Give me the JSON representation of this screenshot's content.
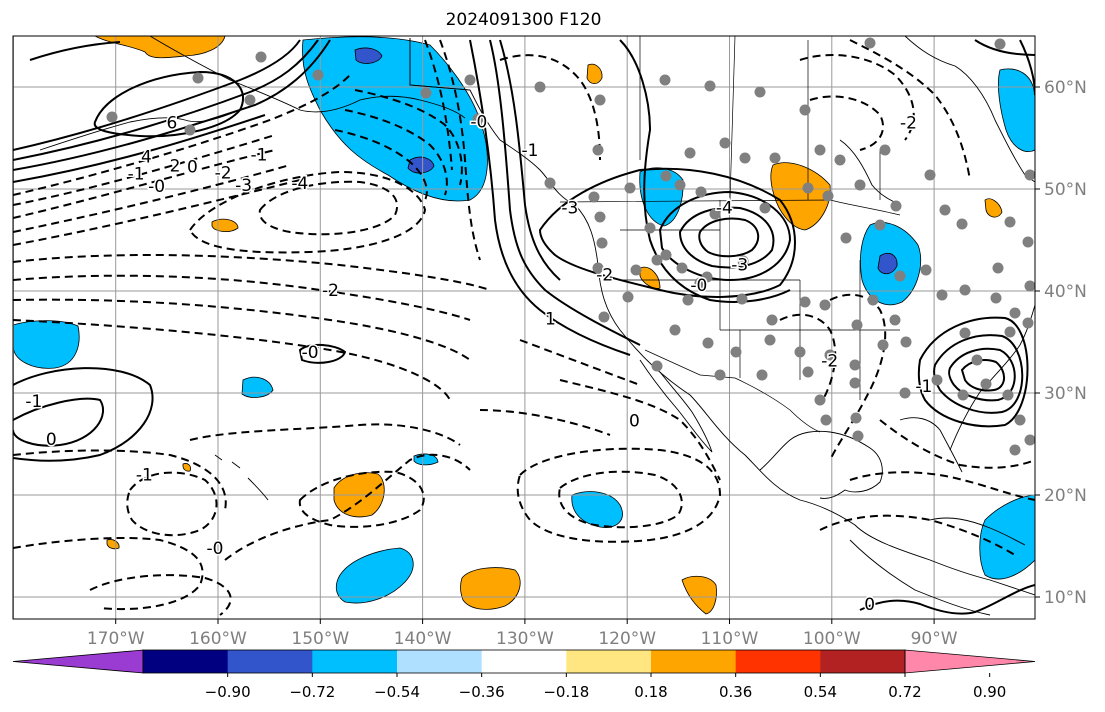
{
  "title": "2024091300 F120",
  "colors": {
    "frame": "#000000",
    "grid": "#9a9a9a",
    "axis_text": "#7f7f7f",
    "coast": "#000000",
    "station": "#808080",
    "contour": "#000000"
  },
  "lon_ticks": [
    {
      "lon": -170,
      "label": "170°W"
    },
    {
      "lon": -160,
      "label": "160°W"
    },
    {
      "lon": -150,
      "label": "150°W"
    },
    {
      "lon": -140,
      "label": "140°W"
    },
    {
      "lon": -130,
      "label": "130°W"
    },
    {
      "lon": -120,
      "label": "120°W"
    },
    {
      "lon": -110,
      "label": "110°W"
    },
    {
      "lon": -100,
      "label": "100°W"
    },
    {
      "lon": -90,
      "label": "90°W"
    }
  ],
  "lat_ticks": [
    {
      "lat": 60,
      "label": "60°N"
    },
    {
      "lat": 50,
      "label": "50°N"
    },
    {
      "lat": 40,
      "label": "40°N"
    },
    {
      "lat": 30,
      "label": "30°N"
    },
    {
      "lat": 20,
      "label": "20°N"
    },
    {
      "lat": 10,
      "label": "10°N"
    }
  ],
  "colorbar": {
    "colors": [
      "#9a3bd1",
      "#000080",
      "#3355cc",
      "#00bfff",
      "#b0e0ff",
      "#ffffff",
      "#ffe680",
      "#ffa500",
      "#ff3300",
      "#b22222",
      "#ff88aa"
    ],
    "labels": [
      "−0.90",
      "−0.72",
      "−0.54",
      "−0.36",
      "−0.18",
      "0.18",
      "0.36",
      "0.54",
      "0.72",
      "0.90"
    ]
  },
  "contour_labels": [
    {
      "text": "6",
      "lon": -164.5,
      "lat": 56.5
    },
    {
      "text": "4",
      "lon": -167,
      "lat": 53.2
    },
    {
      "text": "2",
      "lon": -164.2,
      "lat": 52.3
    },
    {
      "text": "0",
      "lon": -162.5,
      "lat": 52.2
    },
    {
      "text": "-1",
      "lon": -168,
      "lat": 51.5
    },
    {
      "text": "-2",
      "lon": -159.5,
      "lat": 51.6
    },
    {
      "text": "-1",
      "lon": -156,
      "lat": 53.4
    },
    {
      "text": "-0",
      "lon": -166,
      "lat": 50.3
    },
    {
      "text": "-3",
      "lon": -157.5,
      "lat": 50.4
    },
    {
      "text": "-4",
      "lon": -152,
      "lat": 50.6
    },
    {
      "text": "-2",
      "lon": -149,
      "lat": 40.1
    },
    {
      "text": "-0",
      "lon": -151,
      "lat": 34
    },
    {
      "text": "-1",
      "lon": -178,
      "lat": 29.2
    },
    {
      "text": "0",
      "lon": -176.3,
      "lat": 25.5
    },
    {
      "text": "-1",
      "lon": -167.2,
      "lat": 22
    },
    {
      "text": "-0",
      "lon": -160.3,
      "lat": 14.8
    },
    {
      "text": "-0",
      "lon": -134.5,
      "lat": 56.6
    },
    {
      "text": "-1",
      "lon": -129.5,
      "lat": 53.8
    },
    {
      "text": "-3",
      "lon": -125.6,
      "lat": 48.2
    },
    {
      "text": "-2",
      "lon": -122.2,
      "lat": 41.6
    },
    {
      "text": "1",
      "lon": -127.5,
      "lat": 37.3
    },
    {
      "text": "-4",
      "lon": -110.5,
      "lat": 48.2
    },
    {
      "text": "-3",
      "lon": -109,
      "lat": 42.6
    },
    {
      "text": "-0",
      "lon": -113,
      "lat": 40.6
    },
    {
      "text": "0",
      "lon": -119.3,
      "lat": 27.3
    },
    {
      "text": "-2",
      "lon": -92.5,
      "lat": 56.5
    },
    {
      "text": "-2",
      "lon": -100.2,
      "lat": 33.2
    },
    {
      "text": "-1",
      "lon": -91,
      "lat": 30.7
    },
    {
      "text": "0",
      "lon": -96.3,
      "lat": 9.3
    }
  ]
}
